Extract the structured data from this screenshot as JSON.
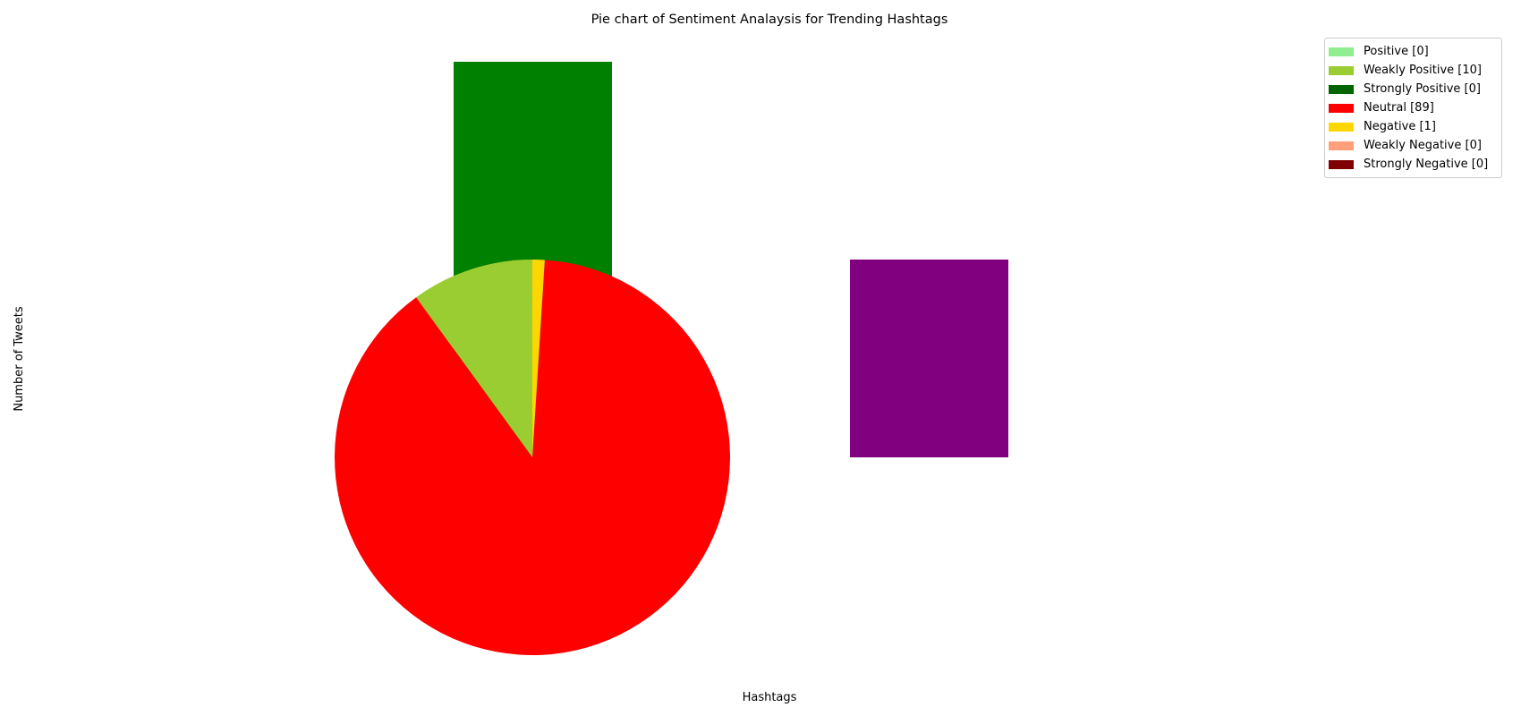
{
  "chart_data": {
    "type": "pie",
    "title": "Pie chart of Sentiment Analaysis for Trending Hashtags",
    "xlabel": "Hashtags",
    "ylabel": "Number of Tweets",
    "slices": [
      {
        "label": "Positive",
        "value": 0,
        "color": "#90EE90"
      },
      {
        "label": "Weakly Positive",
        "value": 10,
        "color": "#9ACD32"
      },
      {
        "label": "Strongly Positive",
        "value": 0,
        "color": "#006400"
      },
      {
        "label": "Neutral",
        "value": 89,
        "color": "#FF0000"
      },
      {
        "label": "Negative",
        "value": 1,
        "color": "#FFD700"
      },
      {
        "label": "Weakly Negative",
        "value": 0,
        "color": "#FFA07A"
      },
      {
        "label": "Strongly Negative",
        "value": 0,
        "color": "#800000"
      }
    ],
    "legend_items": [
      "Positive [0]",
      "Weakly Positive [10]",
      "Strongly Positive [0]",
      "Neutral [89]",
      "Negative [1]",
      "Weakly Negative [0]",
      "Strongly Negative [0]"
    ],
    "legend_position": "top-right",
    "background_shapes": [
      {
        "shape": "rectangle",
        "color": "#008000"
      },
      {
        "shape": "rectangle",
        "color": "#800080"
      }
    ]
  }
}
